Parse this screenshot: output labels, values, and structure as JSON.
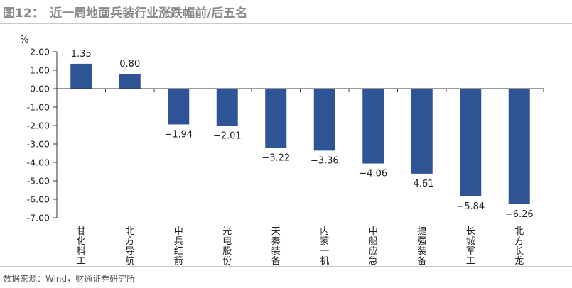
{
  "header": {
    "title": "图12：　近一周地面兵装行业涨跌幅前/后五名"
  },
  "footer": {
    "source": "数据来源：Wind，财通证券研究所"
  },
  "colors": {
    "bar": "#2f5496",
    "axis": "#333333",
    "title": "#8a8a8a"
  },
  "chart_data": {
    "type": "bar",
    "title": "",
    "ylabel": "%",
    "xlabel": "",
    "ylim": [
      -7.0,
      2.0
    ],
    "yticks": [
      "2.00",
      "1.00",
      "0.00",
      "-1.00",
      "-2.00",
      "-3.00",
      "-4.00",
      "-5.00",
      "-6.00",
      "-7.00"
    ],
    "categories": [
      "甘化科工",
      "北方导航",
      "中兵红箭",
      "光电股份",
      "天秦装备",
      "内蒙一机",
      "中船应急",
      "捷强装备",
      "长城军工",
      "北方长龙"
    ],
    "values": [
      1.35,
      0.8,
      -1.94,
      -2.01,
      -3.22,
      -3.36,
      -4.06,
      -4.61,
      -5.84,
      -6.26
    ],
    "data_labels": [
      "1.35",
      "0.80",
      "−1.94",
      "−2.01",
      "−3.22",
      "−3.36",
      "−4.06",
      "-4.61",
      "−5.84",
      "−6.26"
    ],
    "legend": "none",
    "grid": false
  }
}
